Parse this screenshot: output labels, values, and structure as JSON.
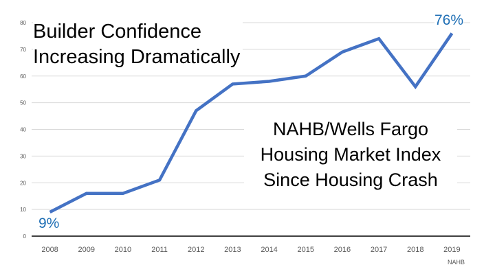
{
  "title": [
    "Builder Confidence",
    "Increasing Dramatically"
  ],
  "subtitle": [
    "NAHB/Wells Fargo",
    "Housing Market Index",
    "Since Housing Crash"
  ],
  "source": "NAHB",
  "start_label": "9%",
  "end_label": "76%",
  "colors": {
    "line": "#4472c4",
    "label": "#1f6fb5",
    "grid": "#d9d9d9",
    "axis": "#000000"
  },
  "chart_data": {
    "type": "line",
    "title": "Builder Confidence Increasing Dramatically",
    "xlabel": "",
    "ylabel": "",
    "categories": [
      "2008",
      "2009",
      "2010",
      "2011",
      "2012",
      "2013",
      "2014",
      "2015",
      "2016",
      "2017",
      "2018",
      "2019"
    ],
    "series": [
      {
        "name": "NAHB/Wells Fargo Housing Market Index",
        "values": [
          9,
          16,
          16,
          21,
          47,
          57,
          58,
          60,
          69,
          74,
          56,
          76
        ]
      }
    ],
    "ylim": [
      0,
      80
    ],
    "yticks": [
      0,
      10,
      20,
      30,
      40,
      50,
      60,
      70,
      80
    ],
    "grid": true,
    "legend": "none"
  }
}
